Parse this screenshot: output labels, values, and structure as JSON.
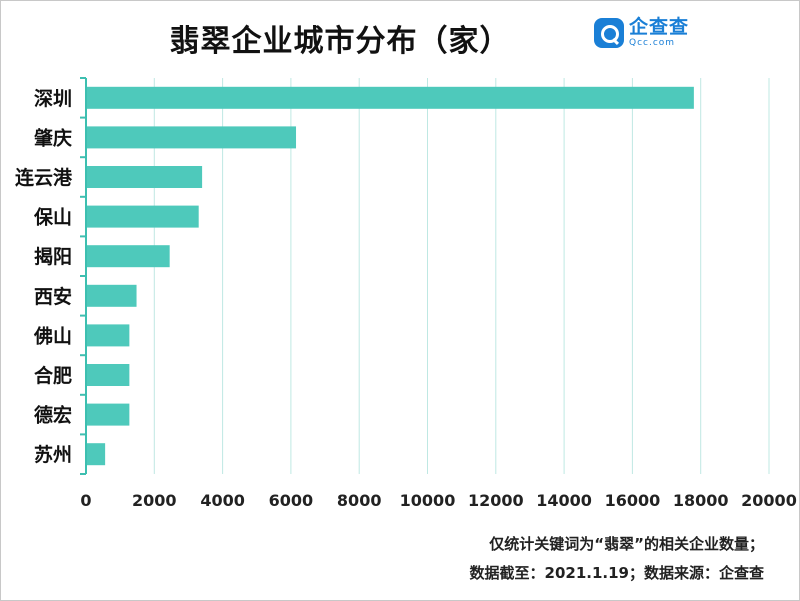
{
  "header": {
    "title": "翡翠企业城市分布（家）",
    "logo": {
      "name": "企查查",
      "domain": "Qcc.com"
    }
  },
  "footer": {
    "note": "仅统计关键词为“翡翠”的相关企业数量；",
    "source": "数据截至：2021.1.19；数据来源：企查查"
  },
  "colors": {
    "bar": "#4ec9bb",
    "axis": "#3dbfb0",
    "grid": "#bfe8e3"
  },
  "chart_data": {
    "type": "bar",
    "orientation": "horizontal",
    "title": "翡翠企业城市分布（家）",
    "xlabel": "",
    "ylabel": "",
    "categories": [
      "深圳",
      "肇庆",
      "连云港",
      "保山",
      "揭阳",
      "西安",
      "佛山",
      "合肥",
      "德宏",
      "苏州"
    ],
    "values": [
      17800,
      6150,
      3400,
      3300,
      2450,
      1480,
      1270,
      1270,
      1270,
      560
    ],
    "xlim": [
      0,
      20000
    ],
    "xticks": [
      0,
      2000,
      4000,
      6000,
      8000,
      10000,
      12000,
      14000,
      16000,
      18000,
      20000
    ],
    "grid": "vertical",
    "legend": "none"
  }
}
